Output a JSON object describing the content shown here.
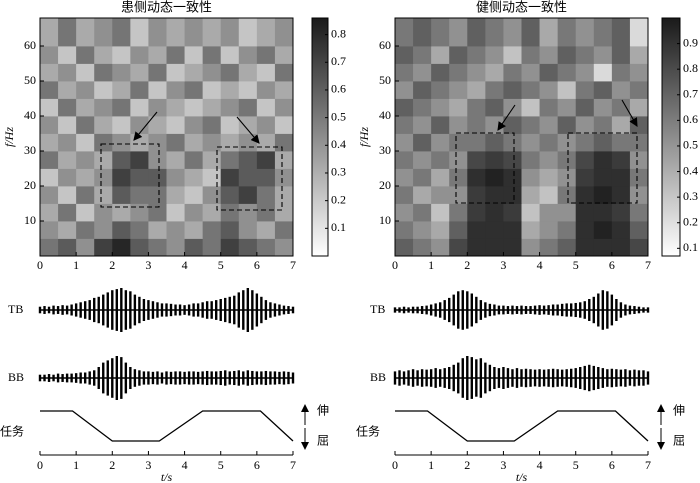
{
  "chart_data": [
    {
      "type": "heatmap",
      "title": "患侧动态一致性",
      "y_label": "f/Hz",
      "x_edges": [
        0,
        0.5,
        1,
        1.5,
        2,
        2.5,
        3,
        3.5,
        4,
        4.5,
        5,
        5.5,
        6,
        6.5,
        7
      ],
      "y_edges": [
        0,
        5,
        10,
        15,
        20,
        25,
        30,
        35,
        40,
        45,
        50,
        55,
        60,
        68
      ],
      "values": [
        [
          0.5,
          0.6,
          0.4,
          0.7,
          0.8,
          0.6,
          0.5,
          0.4,
          0.6,
          0.5,
          0.7,
          0.6,
          0.5,
          0.4
        ],
        [
          0.4,
          0.3,
          0.5,
          0.4,
          0.6,
          0.5,
          0.3,
          0.4,
          0.3,
          0.5,
          0.6,
          0.4,
          0.3,
          0.5
        ],
        [
          0.3,
          0.5,
          0.2,
          0.4,
          0.3,
          0.4,
          0.5,
          0.2,
          0.4,
          0.3,
          0.5,
          0.4,
          0.5,
          0.3
        ],
        [
          0.4,
          0.2,
          0.5,
          0.3,
          0.6,
          0.5,
          0.5,
          0.3,
          0.2,
          0.4,
          0.6,
          0.7,
          0.5,
          0.3
        ],
        [
          0.2,
          0.4,
          0.3,
          0.4,
          0.7,
          0.6,
          0.6,
          0.4,
          0.3,
          0.2,
          0.7,
          0.6,
          0.6,
          0.4
        ],
        [
          0.5,
          0.3,
          0.4,
          0.3,
          0.6,
          0.7,
          0.4,
          0.3,
          0.5,
          0.3,
          0.5,
          0.6,
          0.7,
          0.3
        ],
        [
          0.3,
          0.4,
          0.2,
          0.5,
          0.4,
          0.3,
          0.4,
          0.5,
          0.3,
          0.4,
          0.3,
          0.4,
          0.3,
          0.5
        ],
        [
          0.4,
          0.2,
          0.5,
          0.3,
          0.2,
          0.4,
          0.3,
          0.2,
          0.4,
          0.5,
          0.2,
          0.3,
          0.4,
          0.2
        ],
        [
          0.2,
          0.5,
          0.3,
          0.4,
          0.5,
          0.2,
          0.4,
          0.3,
          0.2,
          0.3,
          0.4,
          0.5,
          0.2,
          0.4
        ],
        [
          0.5,
          0.3,
          0.4,
          0.2,
          0.3,
          0.5,
          0.2,
          0.4,
          0.5,
          0.2,
          0.3,
          0.2,
          0.4,
          0.3
        ],
        [
          0.3,
          0.4,
          0.2,
          0.5,
          0.4,
          0.3,
          0.5,
          0.2,
          0.3,
          0.4,
          0.5,
          0.3,
          0.2,
          0.5
        ],
        [
          0.4,
          0.2,
          0.5,
          0.3,
          0.2,
          0.4,
          0.3,
          0.5,
          0.2,
          0.5,
          0.2,
          0.4,
          0.5,
          0.3
        ],
        [
          0.3,
          0.5,
          0.3,
          0.4,
          0.5,
          0.2,
          0.4,
          0.3,
          0.4,
          0.3,
          0.4,
          0.2,
          0.3,
          0.4
        ]
      ],
      "clim": [
        0,
        0.86
      ],
      "colorbar_ticks": [
        0.1,
        0.2,
        0.3,
        0.4,
        0.5,
        0.6,
        0.7,
        0.8
      ],
      "xlim": [
        0,
        7
      ],
      "ylim": [
        0,
        68
      ],
      "xticks": [
        0,
        1,
        2,
        3,
        4,
        5,
        6,
        7
      ],
      "yticks": [
        10,
        20,
        30,
        40,
        50,
        60
      ],
      "signals": [
        {
          "name": "TB",
          "x": [
            0,
            0.125,
            0.25,
            0.375,
            0.5,
            0.625,
            0.75,
            0.875,
            1,
            1.125,
            1.25,
            1.375,
            1.5,
            1.625,
            1.75,
            1.875,
            2,
            2.125,
            2.25,
            2.375,
            2.5,
            2.625,
            2.75,
            2.875,
            3,
            3.125,
            3.25,
            3.375,
            3.5,
            3.625,
            3.75,
            3.875,
            4,
            4.125,
            4.25,
            4.375,
            4.5,
            4.625,
            4.75,
            4.875,
            5,
            5.125,
            5.25,
            5.375,
            5.5,
            5.625,
            5.75,
            5.875,
            6,
            6.125,
            6.25,
            6.375,
            6.5,
            6.625,
            6.75,
            6.875,
            7
          ],
          "values": [
            0.15,
            0.18,
            0.15,
            0.2,
            0.18,
            0.22,
            0.2,
            0.25,
            0.3,
            0.35,
            0.4,
            0.45,
            0.55,
            0.6,
            0.7,
            0.8,
            0.9,
            0.95,
            1,
            0.9,
            0.85,
            0.7,
            0.6,
            0.5,
            0.45,
            0.4,
            0.35,
            0.3,
            0.3,
            0.28,
            0.25,
            0.25,
            0.22,
            0.25,
            0.3,
            0.3,
            0.35,
            0.4,
            0.4,
            0.45,
            0.5,
            0.55,
            0.6,
            0.65,
            0.8,
            0.9,
            1,
            0.9,
            0.75,
            0.6,
            0.45,
            0.35,
            0.3,
            0.25,
            0.2,
            0.18,
            0.15
          ]
        },
        {
          "name": "BB",
          "x": [
            0,
            0.125,
            0.25,
            0.375,
            0.5,
            0.625,
            0.75,
            0.875,
            1,
            1.125,
            1.25,
            1.375,
            1.5,
            1.625,
            1.75,
            1.875,
            2,
            2.125,
            2.25,
            2.375,
            2.5,
            2.625,
            2.75,
            2.875,
            3,
            3.125,
            3.25,
            3.375,
            3.5,
            3.625,
            3.75,
            3.875,
            4,
            4.125,
            4.25,
            4.375,
            4.5,
            4.625,
            4.75,
            4.875,
            5,
            5.125,
            5.25,
            5.375,
            5.5,
            5.625,
            5.75,
            5.875,
            6,
            6.125,
            6.25,
            6.375,
            6.5,
            6.625,
            6.75,
            6.875,
            7
          ],
          "values": [
            0.15,
            0.15,
            0.18,
            0.15,
            0.2,
            0.18,
            0.2,
            0.2,
            0.22,
            0.25,
            0.25,
            0.3,
            0.35,
            0.5,
            0.7,
            0.8,
            0.9,
            1,
            0.95,
            0.7,
            0.5,
            0.4,
            0.35,
            0.3,
            0.3,
            0.28,
            0.3,
            0.25,
            0.3,
            0.28,
            0.3,
            0.3,
            0.28,
            0.3,
            0.3,
            0.28,
            0.3,
            0.32,
            0.3,
            0.3,
            0.32,
            0.35,
            0.3,
            0.32,
            0.35,
            0.3,
            0.35,
            0.32,
            0.3,
            0.3,
            0.32,
            0.3,
            0.3,
            0.28,
            0.3,
            0.28,
            0.25
          ]
        }
      ],
      "task": {
        "name": "任务",
        "x": [
          0,
          0.9,
          2,
          3.3,
          4.5,
          6.1,
          7
        ],
        "values": [
          1,
          1,
          0,
          0,
          1,
          1,
          0
        ],
        "labels": [
          "伸",
          "屈"
        ]
      },
      "bottom_xticks": [
        0,
        1,
        2,
        3,
        4,
        5,
        6,
        7
      ],
      "x_label": "t/s"
    },
    {
      "type": "heatmap",
      "title": "健侧动态一致性",
      "y_label": "f/Hz",
      "x_edges": [
        0,
        0.5,
        1,
        1.5,
        2,
        2.5,
        3,
        3.5,
        4,
        4.5,
        5,
        5.5,
        6,
        6.5,
        7
      ],
      "y_edges": [
        0,
        5,
        10,
        15,
        20,
        25,
        30,
        35,
        40,
        45,
        50,
        55,
        60,
        68
      ],
      "values": [
        [
          0.7,
          0.6,
          0.5,
          0.8,
          0.9,
          0.9,
          0.9,
          0.5,
          0.6,
          0.7,
          0.9,
          0.9,
          0.9,
          0.8
        ],
        [
          0.6,
          0.5,
          0.4,
          0.7,
          0.9,
          0.9,
          0.9,
          0.4,
          0.5,
          0.6,
          0.9,
          0.95,
          0.9,
          0.7
        ],
        [
          0.5,
          0.6,
          0.3,
          0.6,
          0.85,
          0.9,
          0.85,
          0.3,
          0.5,
          0.5,
          0.9,
          0.9,
          0.85,
          0.6
        ],
        [
          0.6,
          0.4,
          0.5,
          0.5,
          0.85,
          0.9,
          0.9,
          0.4,
          0.3,
          0.6,
          0.9,
          0.95,
          0.9,
          0.5
        ],
        [
          0.5,
          0.6,
          0.4,
          0.6,
          0.9,
          0.95,
          0.9,
          0.5,
          0.4,
          0.5,
          0.85,
          0.9,
          0.9,
          0.6
        ],
        [
          0.6,
          0.5,
          0.6,
          0.5,
          0.8,
          0.85,
          0.8,
          0.6,
          0.5,
          0.6,
          0.8,
          0.9,
          0.85,
          0.5
        ],
        [
          0.5,
          0.7,
          0.5,
          0.6,
          0.6,
          0.7,
          0.6,
          0.5,
          0.6,
          0.5,
          0.6,
          0.7,
          0.6,
          0.6
        ],
        [
          0.6,
          0.5,
          0.7,
          0.5,
          0.6,
          0.5,
          0.7,
          0.6,
          0.5,
          0.7,
          0.5,
          0.6,
          0.4,
          0.7
        ],
        [
          0.7,
          0.6,
          0.5,
          0.4,
          0.6,
          0.7,
          0.5,
          0.3,
          0.6,
          0.5,
          0.7,
          0.5,
          0.6,
          0.4
        ],
        [
          0.5,
          0.7,
          0.6,
          0.5,
          0.4,
          0.6,
          0.7,
          0.6,
          0.5,
          0.3,
          0.6,
          0.7,
          0.5,
          0.6
        ],
        [
          0.6,
          0.5,
          0.7,
          0.6,
          0.5,
          0.4,
          0.6,
          0.5,
          0.7,
          0.6,
          0.5,
          0.2,
          0.6,
          0.5
        ],
        [
          0.7,
          0.6,
          0.4,
          0.7,
          0.6,
          0.5,
          0.3,
          0.6,
          0.5,
          0.7,
          0.6,
          0.5,
          0.7,
          0.4
        ],
        [
          0.6,
          0.7,
          0.6,
          0.5,
          0.7,
          0.6,
          0.5,
          0.7,
          0.4,
          0.6,
          0.5,
          0.6,
          0.7,
          0.2
        ]
      ],
      "clim": [
        0.07,
        1.0
      ],
      "colorbar_ticks": [
        0.1,
        0.2,
        0.3,
        0.4,
        0.5,
        0.6,
        0.7,
        0.8,
        0.9
      ],
      "xlim": [
        0,
        7
      ],
      "ylim": [
        0,
        68
      ],
      "xticks": [
        0,
        1,
        2,
        3,
        4,
        5,
        6,
        7
      ],
      "yticks": [
        10,
        20,
        30,
        40,
        50,
        60
      ],
      "signals": [
        {
          "name": "TB",
          "x": [
            0,
            0.125,
            0.25,
            0.375,
            0.5,
            0.625,
            0.75,
            0.875,
            1,
            1.125,
            1.25,
            1.375,
            1.5,
            1.625,
            1.75,
            1.875,
            2,
            2.125,
            2.25,
            2.375,
            2.5,
            2.625,
            2.75,
            2.875,
            3,
            3.125,
            3.25,
            3.375,
            3.5,
            3.625,
            3.75,
            3.875,
            4,
            4.125,
            4.25,
            4.375,
            4.5,
            4.625,
            4.75,
            4.875,
            5,
            5.125,
            5.25,
            5.375,
            5.5,
            5.625,
            5.75,
            5.875,
            6,
            6.125,
            6.25,
            6.375,
            6.5,
            6.625,
            6.75,
            6.875,
            7
          ],
          "values": [
            0.12,
            0.12,
            0.15,
            0.12,
            0.15,
            0.15,
            0.18,
            0.2,
            0.25,
            0.3,
            0.35,
            0.45,
            0.55,
            0.7,
            0.85,
            0.9,
            0.85,
            0.75,
            0.6,
            0.45,
            0.35,
            0.28,
            0.25,
            0.2,
            0.2,
            0.18,
            0.2,
            0.18,
            0.2,
            0.18,
            0.18,
            0.2,
            0.22,
            0.2,
            0.22,
            0.25,
            0.25,
            0.28,
            0.3,
            0.3,
            0.32,
            0.35,
            0.4,
            0.5,
            0.6,
            0.75,
            0.9,
            0.85,
            0.7,
            0.5,
            0.35,
            0.25,
            0.2,
            0.18,
            0.15,
            0.12,
            0.12
          ]
        },
        {
          "name": "BB",
          "x": [
            0,
            0.125,
            0.25,
            0.375,
            0.5,
            0.625,
            0.75,
            0.875,
            1,
            1.125,
            1.25,
            1.375,
            1.5,
            1.625,
            1.75,
            1.875,
            2,
            2.125,
            2.25,
            2.375,
            2.5,
            2.625,
            2.75,
            2.875,
            3,
            3.125,
            3.25,
            3.375,
            3.5,
            3.625,
            3.75,
            3.875,
            4,
            4.125,
            4.25,
            4.375,
            4.5,
            4.625,
            4.75,
            4.875,
            5,
            5.125,
            5.25,
            5.375,
            5.5,
            5.625,
            5.75,
            5.875,
            6,
            6.125,
            6.25,
            6.375,
            6.5,
            6.625,
            6.75,
            6.875,
            7
          ],
          "values": [
            0.3,
            0.35,
            0.3,
            0.35,
            0.4,
            0.35,
            0.4,
            0.38,
            0.4,
            0.45,
            0.4,
            0.45,
            0.5,
            0.6,
            0.7,
            0.9,
            1,
            0.95,
            0.85,
            0.9,
            0.7,
            0.6,
            0.5,
            0.45,
            0.5,
            0.45,
            0.4,
            0.45,
            0.4,
            0.42,
            0.4,
            0.38,
            0.4,
            0.38,
            0.4,
            0.42,
            0.4,
            0.38,
            0.4,
            0.42,
            0.45,
            0.5,
            0.55,
            0.6,
            0.55,
            0.5,
            0.45,
            0.4,
            0.42,
            0.4,
            0.38,
            0.4,
            0.35,
            0.38,
            0.35,
            0.35,
            0.3
          ]
        }
      ],
      "task": {
        "name": "任务",
        "x": [
          0,
          0.9,
          2,
          3.3,
          4.5,
          6.1,
          7
        ],
        "values": [
          1,
          1,
          0,
          0,
          1,
          1,
          0
        ],
        "labels": [
          "伸",
          "屈"
        ]
      },
      "bottom_xticks": [
        0,
        1,
        2,
        3,
        4,
        5,
        6,
        7
      ],
      "x_label": "t/s"
    }
  ]
}
